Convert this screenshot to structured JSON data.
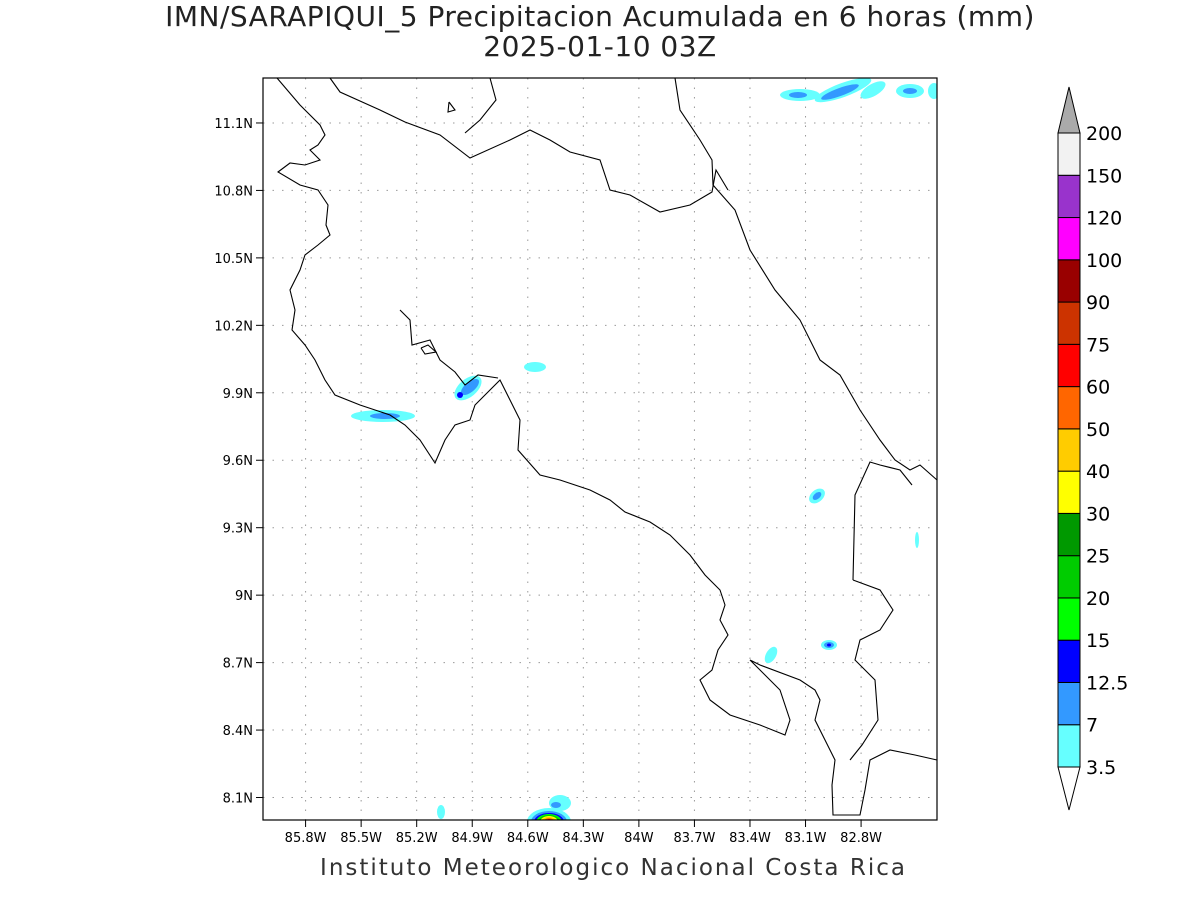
{
  "title": "IMN/SARAPIQUI_5 Precipitacion Acumulada en 6 horas (mm)",
  "subtitle": "2025-01-10 03Z",
  "footer": "Instituto Meteorologico Nacional Costa Rica",
  "map": {
    "lon_range": [
      -86.03,
      -82.39
    ],
    "lat_range": [
      8.0,
      11.3
    ],
    "lon_ticks": [
      {
        "value": -85.8,
        "label": "85.8W"
      },
      {
        "value": -85.5,
        "label": "85.5W"
      },
      {
        "value": -85.2,
        "label": "85.2W"
      },
      {
        "value": -84.9,
        "label": "84.9W"
      },
      {
        "value": -84.6,
        "label": "84.6W"
      },
      {
        "value": -84.3,
        "label": "84.3W"
      },
      {
        "value": -84.0,
        "label": "84W"
      },
      {
        "value": -83.7,
        "label": "83.7W"
      },
      {
        "value": -83.4,
        "label": "83.4W"
      },
      {
        "value": -83.1,
        "label": "83.1W"
      },
      {
        "value": -82.8,
        "label": "82.8W"
      }
    ],
    "lat_ticks": [
      {
        "value": 11.1,
        "label": "11.1N"
      },
      {
        "value": 10.8,
        "label": "10.8N"
      },
      {
        "value": 10.5,
        "label": "10.5N"
      },
      {
        "value": 10.2,
        "label": "10.2N"
      },
      {
        "value": 9.9,
        "label": "9.9N"
      },
      {
        "value": 9.6,
        "label": "9.6N"
      },
      {
        "value": 9.3,
        "label": "9.3N"
      },
      {
        "value": 9.0,
        "label": "9N"
      },
      {
        "value": 8.7,
        "label": "8.7N"
      },
      {
        "value": 8.4,
        "label": "8.4N"
      },
      {
        "value": 8.1,
        "label": "8.1N"
      }
    ]
  },
  "colorbar": {
    "levels": [
      {
        "label": "3.5",
        "color": "#66ffff"
      },
      {
        "label": "7",
        "color": "#3399ff"
      },
      {
        "label": "12.5",
        "color": "#0000ff"
      },
      {
        "label": "15",
        "color": "#00ff00"
      },
      {
        "label": "20",
        "color": "#00cc00"
      },
      {
        "label": "25",
        "color": "#009900"
      },
      {
        "label": "30",
        "color": "#ffff00"
      },
      {
        "label": "40",
        "color": "#ffcc00"
      },
      {
        "label": "50",
        "color": "#ff6600"
      },
      {
        "label": "60",
        "color": "#ff0000"
      },
      {
        "label": "75",
        "color": "#cc3300"
      },
      {
        "label": "90",
        "color": "#990000"
      },
      {
        "label": "100",
        "color": "#ff00ff"
      },
      {
        "label": "120",
        "color": "#9933cc"
      },
      {
        "label": "150",
        "color": "#f2f2f2"
      },
      {
        "label": "200",
        "color": "#aaaaaa"
      }
    ],
    "under_color": "#ffffff",
    "over_color": "#aaaaaa"
  },
  "precip_cells": [
    {
      "lon": -84.95,
      "lat": 9.92,
      "max_level": "12.5"
    },
    {
      "lon": -85.35,
      "lat": 9.8,
      "max_level": "7"
    },
    {
      "lon": -84.45,
      "lat": 10.01,
      "max_level": "7"
    },
    {
      "lon": -83.1,
      "lat": 9.44,
      "max_level": "7"
    },
    {
      "lon": -83.08,
      "lat": 8.78,
      "max_level": "12.5"
    },
    {
      "lon": -83.35,
      "lat": 8.72,
      "max_level": "3.5"
    },
    {
      "lon": -84.58,
      "lat": 8.02,
      "max_level": "75"
    },
    {
      "lon": -83.2,
      "lat": 11.24,
      "max_level": "7"
    },
    {
      "lon": -82.6,
      "lat": 11.25,
      "max_level": "7"
    }
  ]
}
